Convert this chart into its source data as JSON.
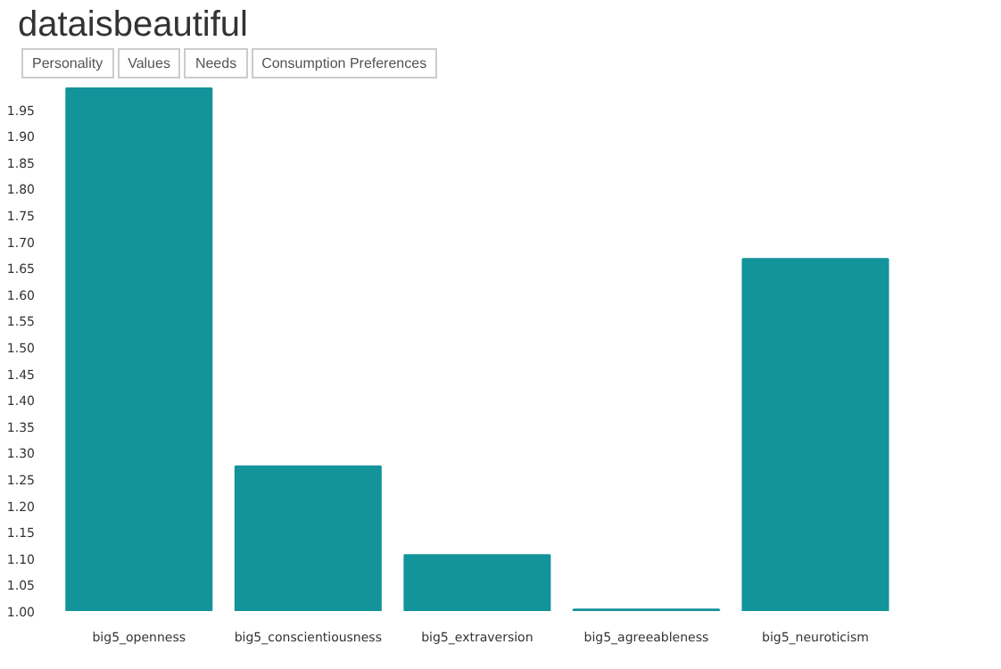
{
  "chart_data": {
    "type": "bar",
    "title": "dataisbeautiful",
    "annotations": [
      "Personality",
      "Values",
      "Needs",
      "Consumption Preferences"
    ],
    "categories": [
      "big5_openness",
      "big5_conscientiousness",
      "big5_extraversion",
      "big5_agreeableness",
      "big5_neuroticism"
    ],
    "values": [
      1.99,
      1.274,
      1.106,
      1.003,
      1.667
    ],
    "color": "#13939a",
    "ylim": [
      1.0,
      2.0
    ],
    "yticks": [
      {
        "value": 1.0,
        "label": "1.00"
      },
      1.05,
      {
        "value": 1.1,
        "label": "1.10"
      },
      1.15,
      {
        "value": 1.2,
        "label": "1.20"
      },
      1.25,
      {
        "value": 1.3,
        "label": "1.30"
      },
      1.35,
      {
        "value": 1.4,
        "label": "1.40"
      },
      1.45,
      {
        "value": 1.5,
        "label": "1.50"
      },
      1.55,
      {
        "value": 1.6,
        "label": "1.60"
      },
      1.65,
      {
        "value": 1.7,
        "label": "1.70"
      },
      1.75,
      {
        "value": 1.8,
        "label": "1.80"
      },
      1.85,
      {
        "value": 1.9,
        "label": "1.90"
      },
      1.95
    ],
    "grid": false
  }
}
